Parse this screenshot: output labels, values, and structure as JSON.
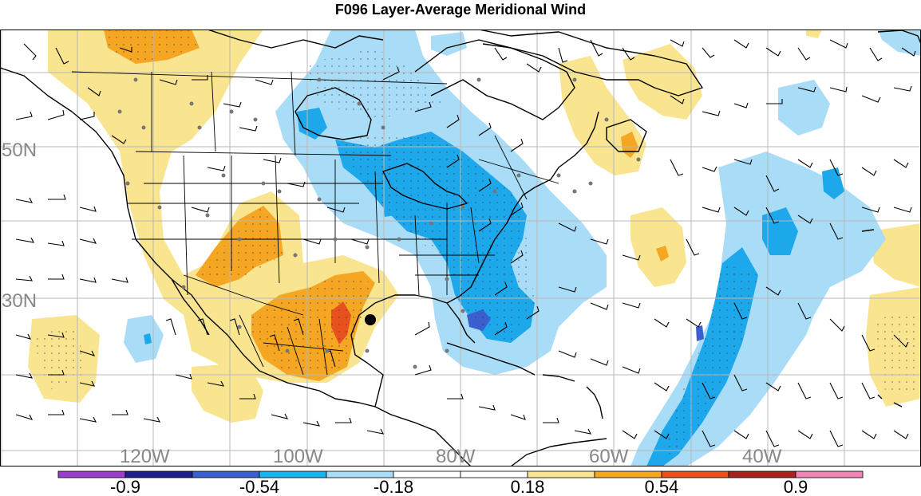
{
  "title": "F096 Layer-Average Meridional Wind",
  "latitude_labels": [
    "50N",
    "30N"
  ],
  "longitude_labels": [
    "120W",
    "100W",
    "80W",
    "60W",
    "40W"
  ],
  "colorbar": {
    "colors": [
      "#9b3ec9",
      "#1f1f8f",
      "#3b5fcf",
      "#19b3f0",
      "#a9dcf6",
      "#ffffff",
      "#ffffff",
      "#f9e48f",
      "#f5a623",
      "#e8501e",
      "#a8231d",
      "#f085b3"
    ],
    "tick_labels": [
      "-0.9",
      "-0.54",
      "-0.18",
      "0.18",
      "0.54",
      "0.9"
    ]
  },
  "colors": {
    "neg_strong": "#1ea8ec",
    "neg_light": "#a9dcf6",
    "pos_light": "#f9e48f",
    "pos_mid": "#f5a623",
    "pos_strong": "#e8501e",
    "neg_core": "#3b5fcf",
    "grid": "#b8b8b8",
    "coast": "#000000",
    "stations": "#777777"
  }
}
